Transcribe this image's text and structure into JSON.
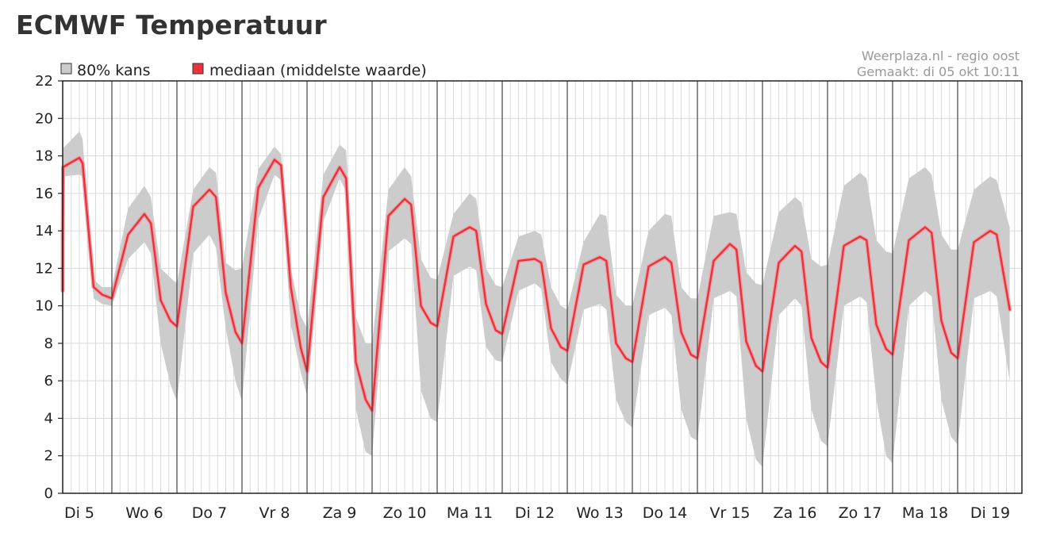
{
  "page": {
    "title": "ECMWF Temperatuur"
  },
  "source": {
    "line1": "Weerplaza.nl - regio oost",
    "line2": "Gemaakt: di 05 okt 10:11"
  },
  "legend": {
    "band_label": "80% kans",
    "median_label": "mediaan (middelste waarde)"
  },
  "colors": {
    "band": "#cccccc",
    "median": "#e8323c",
    "median_halo": "#f3a0a6",
    "grid": "#d9d9d9",
    "day_line": "#444444"
  },
  "chart_data": {
    "type": "area",
    "ylim": [
      0,
      22
    ],
    "yticks": [
      "0",
      "2",
      "4",
      "6",
      "8",
      "10",
      "12",
      "14",
      "16",
      "18",
      "20",
      "22"
    ],
    "day_labels": [
      "Di 5",
      "Wo 6",
      "Do 7",
      "Vr 8",
      "Za 9",
      "Zo 10",
      "Ma 11",
      "Di 12",
      "Wo 13",
      "Do 14",
      "Vr 15",
      "Za 16",
      "Zo 17",
      "Ma 18",
      "Di 19"
    ],
    "grid": true,
    "legend_position": "top-left",
    "series": [
      {
        "name": "mediaan (middelste waarde)",
        "kind": "line",
        "points": [
          [
            0.0,
            10.8
          ],
          [
            0.1,
            13.5
          ],
          [
            0.25,
            17.4
          ],
          [
            0.5,
            17.9
          ],
          [
            0.55,
            17.6
          ],
          [
            0.72,
            11.0
          ],
          [
            0.85,
            10.6
          ],
          [
            1.0,
            10.4
          ],
          [
            1.25,
            13.8
          ],
          [
            1.5,
            14.9
          ],
          [
            1.6,
            14.4
          ],
          [
            1.75,
            10.3
          ],
          [
            1.9,
            9.2
          ],
          [
            2.0,
            8.9
          ],
          [
            2.25,
            15.3
          ],
          [
            2.5,
            16.2
          ],
          [
            2.6,
            15.8
          ],
          [
            2.75,
            10.7
          ],
          [
            2.9,
            8.6
          ],
          [
            3.0,
            8.0
          ],
          [
            3.25,
            16.3
          ],
          [
            3.5,
            17.8
          ],
          [
            3.6,
            17.5
          ],
          [
            3.75,
            11.0
          ],
          [
            3.9,
            7.8
          ],
          [
            4.0,
            6.5
          ],
          [
            4.25,
            15.8
          ],
          [
            4.5,
            17.4
          ],
          [
            4.6,
            16.8
          ],
          [
            4.75,
            7.0
          ],
          [
            4.9,
            5.0
          ],
          [
            5.0,
            4.4
          ],
          [
            5.25,
            14.8
          ],
          [
            5.5,
            15.7
          ],
          [
            5.6,
            15.4
          ],
          [
            5.75,
            10.0
          ],
          [
            5.9,
            9.1
          ],
          [
            6.0,
            8.9
          ],
          [
            6.25,
            13.7
          ],
          [
            6.5,
            14.2
          ],
          [
            6.6,
            14.0
          ],
          [
            6.75,
            10.1
          ],
          [
            6.9,
            8.7
          ],
          [
            7.0,
            8.5
          ],
          [
            7.25,
            12.4
          ],
          [
            7.5,
            12.5
          ],
          [
            7.6,
            12.3
          ],
          [
            7.75,
            8.8
          ],
          [
            7.9,
            7.8
          ],
          [
            8.0,
            7.6
          ],
          [
            8.25,
            12.2
          ],
          [
            8.5,
            12.6
          ],
          [
            8.6,
            12.4
          ],
          [
            8.75,
            8.0
          ],
          [
            8.9,
            7.2
          ],
          [
            9.0,
            7.0
          ],
          [
            9.25,
            12.1
          ],
          [
            9.5,
            12.6
          ],
          [
            9.6,
            12.3
          ],
          [
            9.75,
            8.6
          ],
          [
            9.9,
            7.4
          ],
          [
            10.0,
            7.2
          ],
          [
            10.25,
            12.4
          ],
          [
            10.5,
            13.3
          ],
          [
            10.6,
            13.0
          ],
          [
            10.75,
            8.1
          ],
          [
            10.9,
            6.8
          ],
          [
            11.0,
            6.5
          ],
          [
            11.25,
            12.3
          ],
          [
            11.5,
            13.2
          ],
          [
            11.6,
            12.9
          ],
          [
            11.75,
            8.3
          ],
          [
            11.9,
            7.0
          ],
          [
            12.0,
            6.7
          ],
          [
            12.25,
            13.2
          ],
          [
            12.5,
            13.7
          ],
          [
            12.6,
            13.5
          ],
          [
            12.75,
            9.0
          ],
          [
            12.9,
            7.7
          ],
          [
            13.0,
            7.4
          ],
          [
            13.25,
            13.5
          ],
          [
            13.5,
            14.2
          ],
          [
            13.6,
            13.9
          ],
          [
            13.75,
            9.2
          ],
          [
            13.9,
            7.5
          ],
          [
            14.0,
            7.2
          ],
          [
            14.25,
            13.4
          ],
          [
            14.5,
            14.0
          ],
          [
            14.6,
            13.8
          ],
          [
            14.8,
            9.8
          ]
        ]
      },
      {
        "name": "80% kans",
        "kind": "band",
        "points": [
          [
            0.0,
            10.0,
            12.0
          ],
          [
            0.1,
            12.8,
            14.2
          ],
          [
            0.25,
            16.9,
            18.4
          ],
          [
            0.5,
            17.0,
            19.3
          ],
          [
            0.55,
            16.9,
            18.9
          ],
          [
            0.72,
            10.4,
            11.4
          ],
          [
            0.85,
            10.1,
            11.0
          ],
          [
            1.0,
            10.0,
            11.0
          ],
          [
            1.25,
            12.5,
            15.2
          ],
          [
            1.5,
            13.4,
            16.4
          ],
          [
            1.6,
            12.8,
            15.8
          ],
          [
            1.75,
            8.0,
            12.0
          ],
          [
            1.9,
            5.8,
            11.5
          ],
          [
            2.0,
            4.9,
            11.2
          ],
          [
            2.25,
            12.8,
            16.2
          ],
          [
            2.5,
            13.8,
            17.4
          ],
          [
            2.6,
            13.1,
            17.1
          ],
          [
            2.75,
            8.8,
            12.3
          ],
          [
            2.9,
            6.0,
            11.9
          ],
          [
            3.0,
            4.9,
            12.0
          ],
          [
            3.25,
            14.6,
            17.3
          ],
          [
            3.5,
            17.0,
            18.5
          ],
          [
            3.6,
            16.7,
            18.1
          ],
          [
            3.75,
            9.0,
            12.0
          ],
          [
            3.9,
            6.5,
            9.5
          ],
          [
            4.0,
            5.2,
            8.8
          ],
          [
            4.25,
            14.5,
            17.0
          ],
          [
            4.5,
            16.8,
            18.6
          ],
          [
            4.6,
            16.1,
            18.3
          ],
          [
            4.75,
            4.5,
            9.4
          ],
          [
            4.9,
            2.2,
            8.0
          ],
          [
            5.0,
            2.0,
            8.0
          ],
          [
            5.25,
            12.9,
            16.2
          ],
          [
            5.5,
            13.6,
            17.4
          ],
          [
            5.6,
            13.3,
            16.9
          ],
          [
            5.75,
            5.5,
            12.5
          ],
          [
            5.9,
            4.0,
            11.5
          ],
          [
            6.0,
            3.8,
            11.4
          ],
          [
            6.25,
            11.6,
            14.9
          ],
          [
            6.5,
            12.1,
            16.0
          ],
          [
            6.6,
            11.9,
            15.7
          ],
          [
            6.75,
            7.8,
            12.0
          ],
          [
            6.9,
            7.1,
            11.1
          ],
          [
            7.0,
            7.0,
            11.0
          ],
          [
            7.25,
            10.8,
            13.7
          ],
          [
            7.5,
            11.2,
            14.0
          ],
          [
            7.6,
            10.9,
            13.8
          ],
          [
            7.75,
            7.0,
            11.0
          ],
          [
            7.9,
            6.1,
            10.0
          ],
          [
            8.0,
            5.8,
            9.8
          ],
          [
            8.25,
            9.8,
            13.4
          ],
          [
            8.5,
            10.1,
            14.9
          ],
          [
            8.6,
            9.8,
            14.8
          ],
          [
            8.75,
            5.0,
            10.6
          ],
          [
            8.9,
            3.8,
            10.0
          ],
          [
            9.0,
            3.5,
            10.0
          ],
          [
            9.25,
            9.5,
            14.0
          ],
          [
            9.5,
            9.9,
            14.9
          ],
          [
            9.6,
            9.5,
            14.8
          ],
          [
            9.75,
            4.5,
            11.0
          ],
          [
            9.9,
            3.0,
            10.4
          ],
          [
            10.0,
            2.8,
            10.4
          ],
          [
            10.25,
            10.4,
            14.8
          ],
          [
            10.5,
            10.8,
            15.0
          ],
          [
            10.6,
            10.5,
            14.9
          ],
          [
            10.75,
            4.0,
            11.8
          ],
          [
            10.9,
            1.8,
            11.2
          ],
          [
            11.0,
            1.4,
            11.1
          ],
          [
            11.25,
            9.5,
            15.0
          ],
          [
            11.5,
            10.4,
            15.8
          ],
          [
            11.6,
            10.0,
            15.5
          ],
          [
            11.75,
            4.5,
            12.5
          ],
          [
            11.9,
            2.8,
            12.1
          ],
          [
            12.0,
            2.5,
            12.2
          ],
          [
            12.25,
            10.0,
            16.4
          ],
          [
            12.5,
            10.5,
            17.1
          ],
          [
            12.6,
            10.2,
            16.8
          ],
          [
            12.75,
            5.0,
            13.5
          ],
          [
            12.9,
            2.0,
            12.9
          ],
          [
            13.0,
            1.6,
            12.8
          ],
          [
            13.25,
            10.0,
            16.8
          ],
          [
            13.5,
            10.8,
            17.4
          ],
          [
            13.6,
            10.5,
            17.0
          ],
          [
            13.75,
            5.0,
            13.8
          ],
          [
            13.9,
            3.0,
            13.0
          ],
          [
            14.0,
            2.6,
            13.0
          ],
          [
            14.25,
            10.4,
            16.2
          ],
          [
            14.5,
            10.8,
            16.9
          ],
          [
            14.6,
            10.5,
            16.7
          ],
          [
            14.8,
            6.0,
            14.2
          ]
        ]
      }
    ]
  }
}
